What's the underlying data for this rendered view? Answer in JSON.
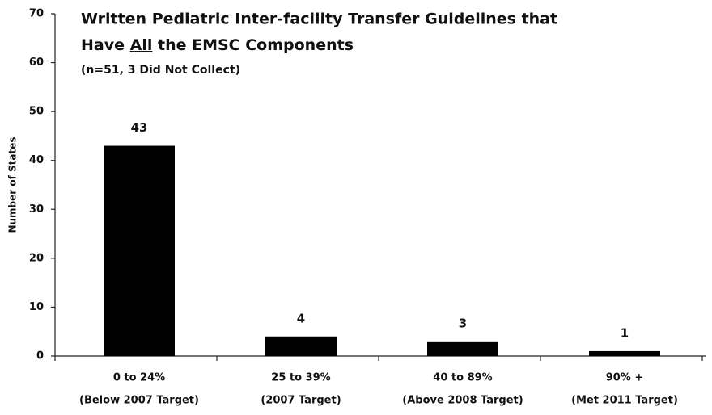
{
  "chart_data": {
    "type": "bar",
    "title": [
      "Written Pediatric Inter-facility Transfer Guidelines that",
      "Have",
      "All",
      "the EMSC Components"
    ],
    "subtitle": "(n=51, 3 Did Not Collect)",
    "y_label": "Number of States",
    "categories": [
      [
        "0 to 24%",
        "(Below 2007 Target)"
      ],
      [
        "25 to 39%",
        "(2007 Target)"
      ],
      [
        "40 to 89%",
        "(Above 2008 Target)"
      ],
      [
        "90% +",
        "(Met 2011 Target)"
      ]
    ],
    "values": [
      43,
      4,
      3,
      1
    ],
    "color": "#000000",
    "ylim": [
      0,
      70
    ],
    "yticks": [
      0,
      10,
      20,
      30,
      40,
      50,
      60,
      70
    ],
    "grid": false
  }
}
